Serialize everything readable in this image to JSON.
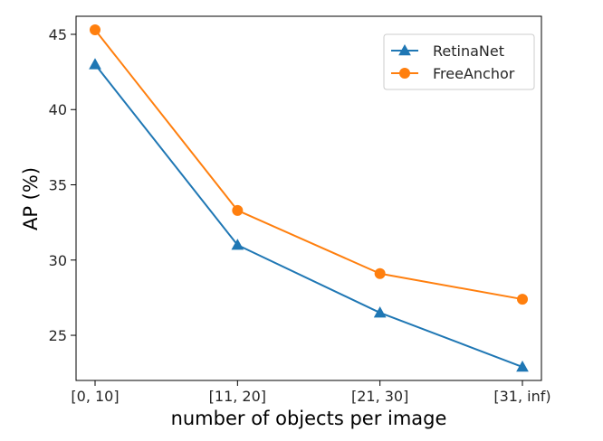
{
  "chart_data": {
    "type": "line",
    "categories": [
      "[0, 10]",
      "[11, 20]",
      "[21, 30]",
      "[31, inf)"
    ],
    "series": [
      {
        "name": "RetinaNet",
        "values": [
          43.0,
          31.0,
          26.5,
          22.9
        ],
        "color": "#1f77b4",
        "marker": "triangle"
      },
      {
        "name": "FreeAnchor",
        "values": [
          45.3,
          33.3,
          29.1,
          27.4
        ],
        "color": "#ff7f0e",
        "marker": "circle"
      }
    ],
    "title": "",
    "xlabel": "number of objects per image",
    "ylabel": "AP (%)",
    "ylim": [
      22.0,
      46.2
    ],
    "yticks": [
      25,
      30,
      35,
      40,
      45
    ],
    "grid": false,
    "legend_position": "top-right"
  }
}
